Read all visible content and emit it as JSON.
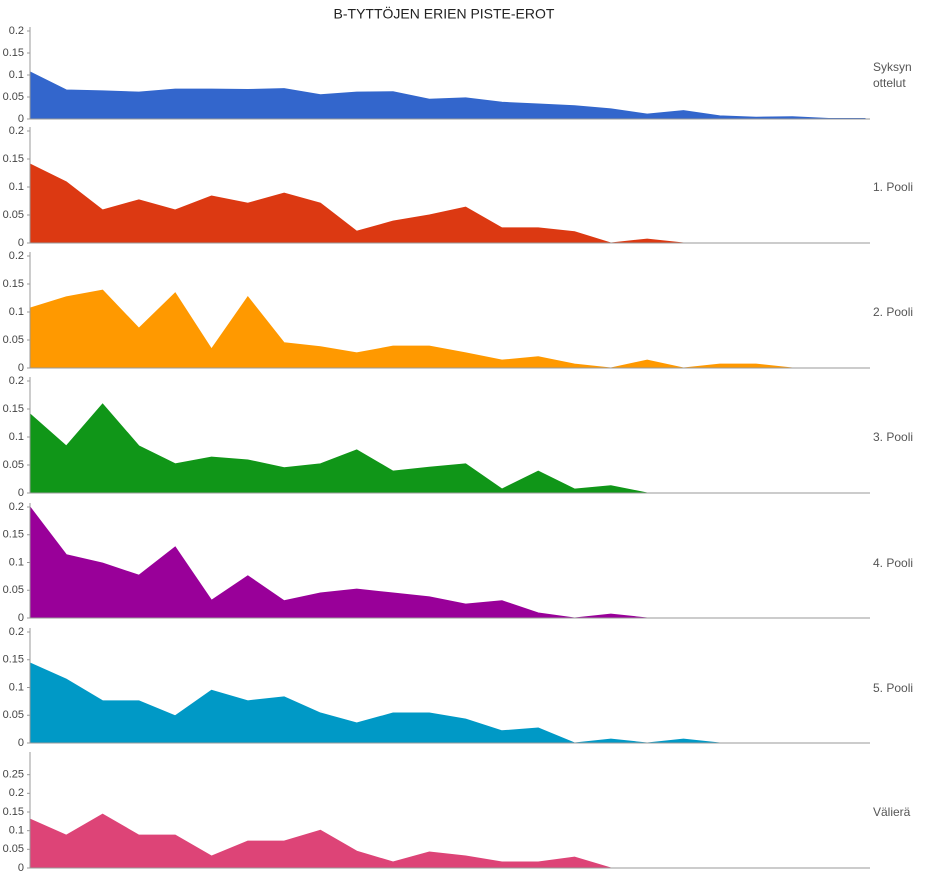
{
  "title": "B-TYTTÖJEN ERIEN PISTE-EROT",
  "chart_data": [
    {
      "type": "area",
      "categories": [
        null,
        null,
        null,
        null,
        null,
        null,
        null,
        null,
        null,
        null,
        null,
        null,
        null,
        null,
        null,
        null,
        null,
        null,
        null,
        null,
        null,
        null,
        null,
        null
      ],
      "series": [
        {
          "name": "Syksyn ottelut",
          "color": "#3366cc",
          "values": [
            0.107,
            0.066,
            0.064,
            0.061,
            0.068,
            0.068,
            0.067,
            0.069,
            0.055,
            0.061,
            0.062,
            0.045,
            0.048,
            0.038,
            0.034,
            0.03,
            0.023,
            0.011,
            0.019,
            0.007,
            0.004,
            0.005,
            0.001,
            0.001
          ]
        }
      ],
      "ylim": [
        0,
        0.2
      ],
      "yticks": [
        0,
        0.05,
        0.1,
        0.15,
        0.2
      ]
    },
    {
      "type": "area",
      "categories": [
        null,
        null,
        null,
        null,
        null,
        null,
        null,
        null,
        null,
        null,
        null,
        null,
        null,
        null,
        null,
        null,
        null,
        null,
        null,
        null,
        null,
        null,
        null,
        null
      ],
      "series": [
        {
          "name": "1. Pooli",
          "color": "#dc3912",
          "values": [
            0.141,
            0.109,
            0.059,
            0.077,
            0.059,
            0.084,
            0.071,
            0.089,
            0.071,
            0.021,
            0.039,
            0.05,
            0.064,
            0.027,
            0.027,
            0.02,
            0,
            0.007,
            0,
            0,
            0,
            0,
            0,
            0
          ]
        }
      ],
      "ylim": [
        0,
        0.2
      ],
      "yticks": [
        0,
        0.05,
        0.1,
        0.15,
        0.2
      ]
    },
    {
      "type": "area",
      "categories": [
        null,
        null,
        null,
        null,
        null,
        null,
        null,
        null,
        null,
        null,
        null,
        null,
        null,
        null,
        null,
        null,
        null,
        null,
        null,
        null,
        null,
        null,
        null,
        null
      ],
      "series": [
        {
          "name": "2. Pooli",
          "color": "#ff9900",
          "values": [
            0.107,
            0.127,
            0.139,
            0.071,
            0.134,
            0.034,
            0.127,
            0.045,
            0.038,
            0.027,
            0.039,
            0.039,
            0.027,
            0.014,
            0.02,
            0.007,
            0,
            0.014,
            0,
            0.007,
            0.007,
            0,
            0,
            0
          ]
        }
      ],
      "ylim": [
        0,
        0.2
      ],
      "yticks": [
        0,
        0.05,
        0.1,
        0.15,
        0.2
      ]
    },
    {
      "type": "area",
      "categories": [
        null,
        null,
        null,
        null,
        null,
        null,
        null,
        null,
        null,
        null,
        null,
        null,
        null,
        null,
        null,
        null,
        null,
        null,
        null,
        null,
        null,
        null,
        null,
        null
      ],
      "series": [
        {
          "name": "3. Pooli",
          "color": "#109618",
          "values": [
            0.141,
            0.084,
            0.159,
            0.084,
            0.052,
            0.064,
            0.059,
            0.045,
            0.052,
            0.077,
            0.039,
            0.046,
            0.052,
            0.007,
            0.039,
            0.007,
            0.013,
            0,
            0,
            0,
            0,
            0,
            0,
            0
          ]
        }
      ],
      "ylim": [
        0,
        0.2
      ],
      "yticks": [
        0,
        0.05,
        0.1,
        0.15,
        0.2
      ]
    },
    {
      "type": "area",
      "categories": [
        null,
        null,
        null,
        null,
        null,
        null,
        null,
        null,
        null,
        null,
        null,
        null,
        null,
        null,
        null,
        null,
        null,
        null,
        null,
        null,
        null,
        null,
        null,
        null
      ],
      "series": [
        {
          "name": "4. Pooli",
          "color": "#990099",
          "values": [
            0.2,
            0.114,
            0.099,
            0.077,
            0.128,
            0.032,
            0.076,
            0.031,
            0.045,
            0.052,
            0.045,
            0.038,
            0.025,
            0.031,
            0.009,
            0,
            0.007,
            0,
            0,
            0,
            0,
            0,
            0,
            0
          ]
        }
      ],
      "ylim": [
        0,
        0.2
      ],
      "yticks": [
        0,
        0.05,
        0.1,
        0.15,
        0.2
      ]
    },
    {
      "type": "area",
      "categories": [
        null,
        null,
        null,
        null,
        null,
        null,
        null,
        null,
        null,
        null,
        null,
        null,
        null,
        null,
        null,
        null,
        null,
        null,
        null,
        null,
        null,
        null,
        null,
        null
      ],
      "series": [
        {
          "name": "5. Pooli",
          "color": "#0099c6",
          "values": [
            0.144,
            0.115,
            0.076,
            0.076,
            0.049,
            0.095,
            0.076,
            0.083,
            0.054,
            0.036,
            0.054,
            0.054,
            0.043,
            0.022,
            0.027,
            0,
            0.007,
            0,
            0.007,
            0,
            0,
            0,
            0,
            0
          ]
        }
      ],
      "ylim": [
        0,
        0.2
      ],
      "yticks": [
        0,
        0.05,
        0.1,
        0.15,
        0.2
      ]
    },
    {
      "type": "area",
      "categories": [
        null,
        null,
        null,
        null,
        null,
        null,
        null,
        null,
        null,
        null,
        null,
        null,
        null,
        null,
        null,
        null,
        null,
        null,
        null,
        null,
        null,
        null,
        null,
        null
      ],
      "series": [
        {
          "name": "Välierä",
          "color": "#dd4477",
          "values": [
            0.131,
            0.088,
            0.144,
            0.088,
            0.088,
            0.032,
            0.072,
            0.072,
            0.101,
            0.045,
            0.016,
            0.043,
            0.032,
            0.016,
            0.016,
            0.029,
            0,
            0,
            0,
            0,
            0,
            0,
            0,
            0
          ]
        }
      ],
      "ylim": [
        0,
        0.3
      ],
      "yticks": [
        0,
        0.05,
        0.1,
        0.15,
        0.2,
        0.25
      ]
    }
  ]
}
